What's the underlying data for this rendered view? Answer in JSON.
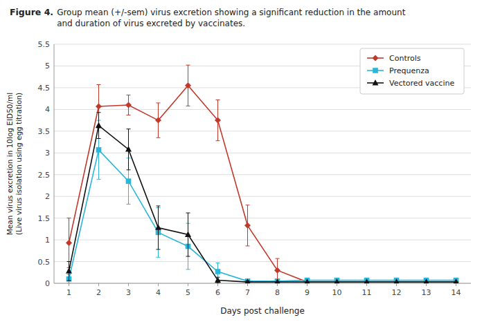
{
  "chart_data": {
    "type": "line",
    "title": "Figure 4.",
    "subtitle": "Group mean (+/-sem) virus excretion showing a significant reduction in the amount\nand duration of virus excreted by vaccinates.",
    "x_label": "Days post challenge",
    "y_label": "Mean virus excretion in 10log EID50/ml\n(Live virus isolation using egg titration)",
    "x": [
      1,
      2,
      3,
      4,
      5,
      6,
      7,
      8,
      9,
      10,
      11,
      12,
      13,
      14
    ],
    "xlim": [
      0.5,
      14.5
    ],
    "xticks": [
      1,
      2,
      3,
      4,
      5,
      6,
      7,
      8,
      9,
      10,
      11,
      12,
      13,
      14
    ],
    "ylim": [
      0,
      5.5
    ],
    "yticks": [
      0,
      0.5,
      1,
      1.5,
      2,
      2.5,
      3,
      3.5,
      4,
      4.5,
      5,
      5.5
    ],
    "grid": true,
    "legend": "upper right",
    "series": [
      {
        "name": "Controls",
        "color": "#c0392b",
        "marker": "diamond",
        "values": [
          0.93,
          4.07,
          4.1,
          3.75,
          4.55,
          3.75,
          1.33,
          0.3,
          0.03,
          0.03,
          0.03,
          0.03,
          0.03,
          0.03
        ],
        "errors": [
          0.57,
          0.5,
          0.23,
          0.4,
          0.47,
          0.47,
          0.47,
          0.27,
          0.03,
          0.0,
          0.0,
          0.0,
          0.0,
          0.0
        ]
      },
      {
        "name": "Prequenza",
        "color": "#29b6d8",
        "marker": "square",
        "values": [
          0.1,
          3.07,
          2.35,
          1.17,
          0.85,
          0.27,
          0.05,
          0.05,
          0.07,
          0.07,
          0.07,
          0.07,
          0.07,
          0.07
        ],
        "errors": [
          0.1,
          0.68,
          0.53,
          0.57,
          0.53,
          0.2,
          0.05,
          0.05,
          0.0,
          0.0,
          0.0,
          0.0,
          0.0,
          0.0
        ]
      },
      {
        "name": "Vectored vaccine",
        "color": "#111111",
        "marker": "triangle",
        "values": [
          0.28,
          3.63,
          3.08,
          1.28,
          1.12,
          0.07,
          0.03,
          0.03,
          0.03,
          0.03,
          0.03,
          0.03,
          0.03,
          0.03
        ],
        "errors": [
          0.22,
          0.3,
          0.47,
          0.5,
          0.5,
          0.07,
          0.03,
          0.0,
          0.0,
          0.0,
          0.0,
          0.0,
          0.0,
          0.0
        ]
      }
    ]
  }
}
